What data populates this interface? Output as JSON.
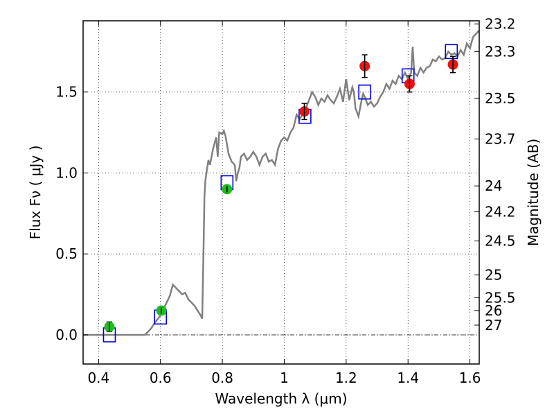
{
  "chart_data": {
    "type": "line",
    "title": "",
    "xlabel": "Wavelength  λ (μm)",
    "ylabel": "Flux  Fν  ( μJy )",
    "ylabel_right": "Magnitude (AB)",
    "xlim": [
      0.35,
      1.63
    ],
    "ylim": [
      -0.18,
      1.94
    ],
    "x_ticks": [
      0.4,
      0.6,
      0.8,
      1.0,
      1.2,
      1.4,
      1.6
    ],
    "x_tick_labels": [
      "0.4",
      "0.6",
      "0.8",
      "1",
      "1.2",
      "1.4",
      "1.6"
    ],
    "y_ticks": [
      0.0,
      0.5,
      1.0,
      1.5
    ],
    "y_tick_labels": [
      "0.0",
      "0.5",
      "1.0",
      "1.5"
    ],
    "right_ticks": [
      {
        "label": "23.2",
        "flux": 1.92
      },
      {
        "label": "23.3",
        "flux": 1.75
      },
      {
        "label": "23.5",
        "flux": 1.46
      },
      {
        "label": "23.7",
        "flux": 1.21
      },
      {
        "label": "24",
        "flux": 0.92
      },
      {
        "label": "24.2",
        "flux": 0.76
      },
      {
        "label": "24.5",
        "flux": 0.58
      },
      {
        "label": "25",
        "flux": 0.37
      },
      {
        "label": "25.5",
        "flux": 0.23
      },
      {
        "label": "26",
        "flux": 0.15
      },
      {
        "label": "27",
        "flux": 0.06
      }
    ],
    "grid": true,
    "zero_line": true,
    "colors": {
      "model": "#808080",
      "green_points": "#22bb22",
      "red_points": "#ee1111",
      "model_boxes": "#0000dd",
      "errorbar": "#000000"
    },
    "series": [
      {
        "kind": "line",
        "x": [
          0.35,
          0.43,
          0.5,
          0.55,
          0.57,
          0.58,
          0.6,
          0.61,
          0.62,
          0.63,
          0.64,
          0.65,
          0.66,
          0.67,
          0.68,
          0.69,
          0.7,
          0.71,
          0.72,
          0.73,
          0.735,
          0.74,
          0.742,
          0.745,
          0.75,
          0.755,
          0.76,
          0.77,
          0.78,
          0.785,
          0.79,
          0.8,
          0.805,
          0.81,
          0.82,
          0.83,
          0.84,
          0.845,
          0.85,
          0.855,
          0.86,
          0.87,
          0.88,
          0.89,
          0.9,
          0.91,
          0.92,
          0.93,
          0.94,
          0.95,
          0.96,
          0.97,
          0.98,
          0.99,
          1.0,
          1.01,
          1.02,
          1.03,
          1.04,
          1.05,
          1.06,
          1.07,
          1.08,
          1.09,
          1.1,
          1.11,
          1.12,
          1.13,
          1.14,
          1.15,
          1.16,
          1.17,
          1.18,
          1.19,
          1.2,
          1.21,
          1.22,
          1.225,
          1.23,
          1.24,
          1.25,
          1.255,
          1.26,
          1.27,
          1.28,
          1.29,
          1.3,
          1.31,
          1.32,
          1.33,
          1.34,
          1.35,
          1.36,
          1.37,
          1.38,
          1.39,
          1.4,
          1.41,
          1.415,
          1.42,
          1.43,
          1.44,
          1.45,
          1.46,
          1.47,
          1.48,
          1.49,
          1.5,
          1.51,
          1.52,
          1.53,
          1.54,
          1.55,
          1.56,
          1.57,
          1.58,
          1.59,
          1.6,
          1.61,
          1.62,
          1.63
        ],
        "y": [
          0.0,
          0.0,
          0.0,
          0.0,
          0.04,
          0.07,
          0.12,
          0.16,
          0.2,
          0.24,
          0.31,
          0.29,
          0.27,
          0.25,
          0.26,
          0.22,
          0.2,
          0.18,
          0.15,
          0.12,
          0.1,
          0.62,
          0.85,
          0.95,
          1.02,
          1.08,
          1.05,
          1.15,
          1.22,
          1.1,
          1.25,
          1.24,
          1.26,
          1.23,
          1.12,
          1.07,
          1.05,
          0.95,
          1.0,
          1.03,
          1.1,
          1.12,
          1.08,
          1.1,
          1.13,
          1.1,
          1.05,
          1.1,
          1.12,
          1.07,
          1.08,
          1.05,
          1.15,
          1.2,
          1.22,
          1.2,
          1.25,
          1.28,
          1.36,
          1.33,
          1.37,
          1.4,
          1.45,
          1.5,
          1.47,
          1.42,
          1.46,
          1.44,
          1.48,
          1.45,
          1.43,
          1.47,
          1.52,
          1.44,
          1.58,
          1.45,
          1.53,
          1.5,
          1.4,
          1.35,
          1.45,
          1.49,
          1.47,
          1.42,
          1.44,
          1.41,
          1.43,
          1.47,
          1.5,
          1.55,
          1.52,
          1.57,
          1.55,
          1.6,
          1.58,
          1.62,
          1.58,
          1.62,
          1.78,
          1.62,
          1.6,
          1.65,
          1.62,
          1.65,
          1.66,
          1.7,
          1.69,
          1.72,
          1.7,
          1.71,
          1.75,
          1.73,
          1.74,
          1.72,
          1.76,
          1.73,
          1.8,
          1.77,
          1.84,
          1.86,
          1.88
        ]
      },
      {
        "kind": "scatter",
        "marker": "circle",
        "x": [
          0.435,
          0.603,
          0.815
        ],
        "y": [
          0.05,
          0.15,
          0.9
        ],
        "err": [
          0.03,
          0.02,
          0.02
        ]
      },
      {
        "kind": "scatter",
        "marker": "circle",
        "x": [
          1.065,
          1.26,
          1.405,
          1.545
        ],
        "y": [
          1.38,
          1.66,
          1.55,
          1.67
        ],
        "err": [
          0.05,
          0.07,
          0.05,
          0.05
        ]
      },
      {
        "kind": "scatter",
        "marker": "open-square",
        "x": [
          0.435,
          0.6,
          0.815,
          1.067,
          1.26,
          1.4,
          1.54
        ],
        "y": [
          0.0,
          0.11,
          0.94,
          1.35,
          1.5,
          1.6,
          1.75
        ]
      }
    ]
  }
}
